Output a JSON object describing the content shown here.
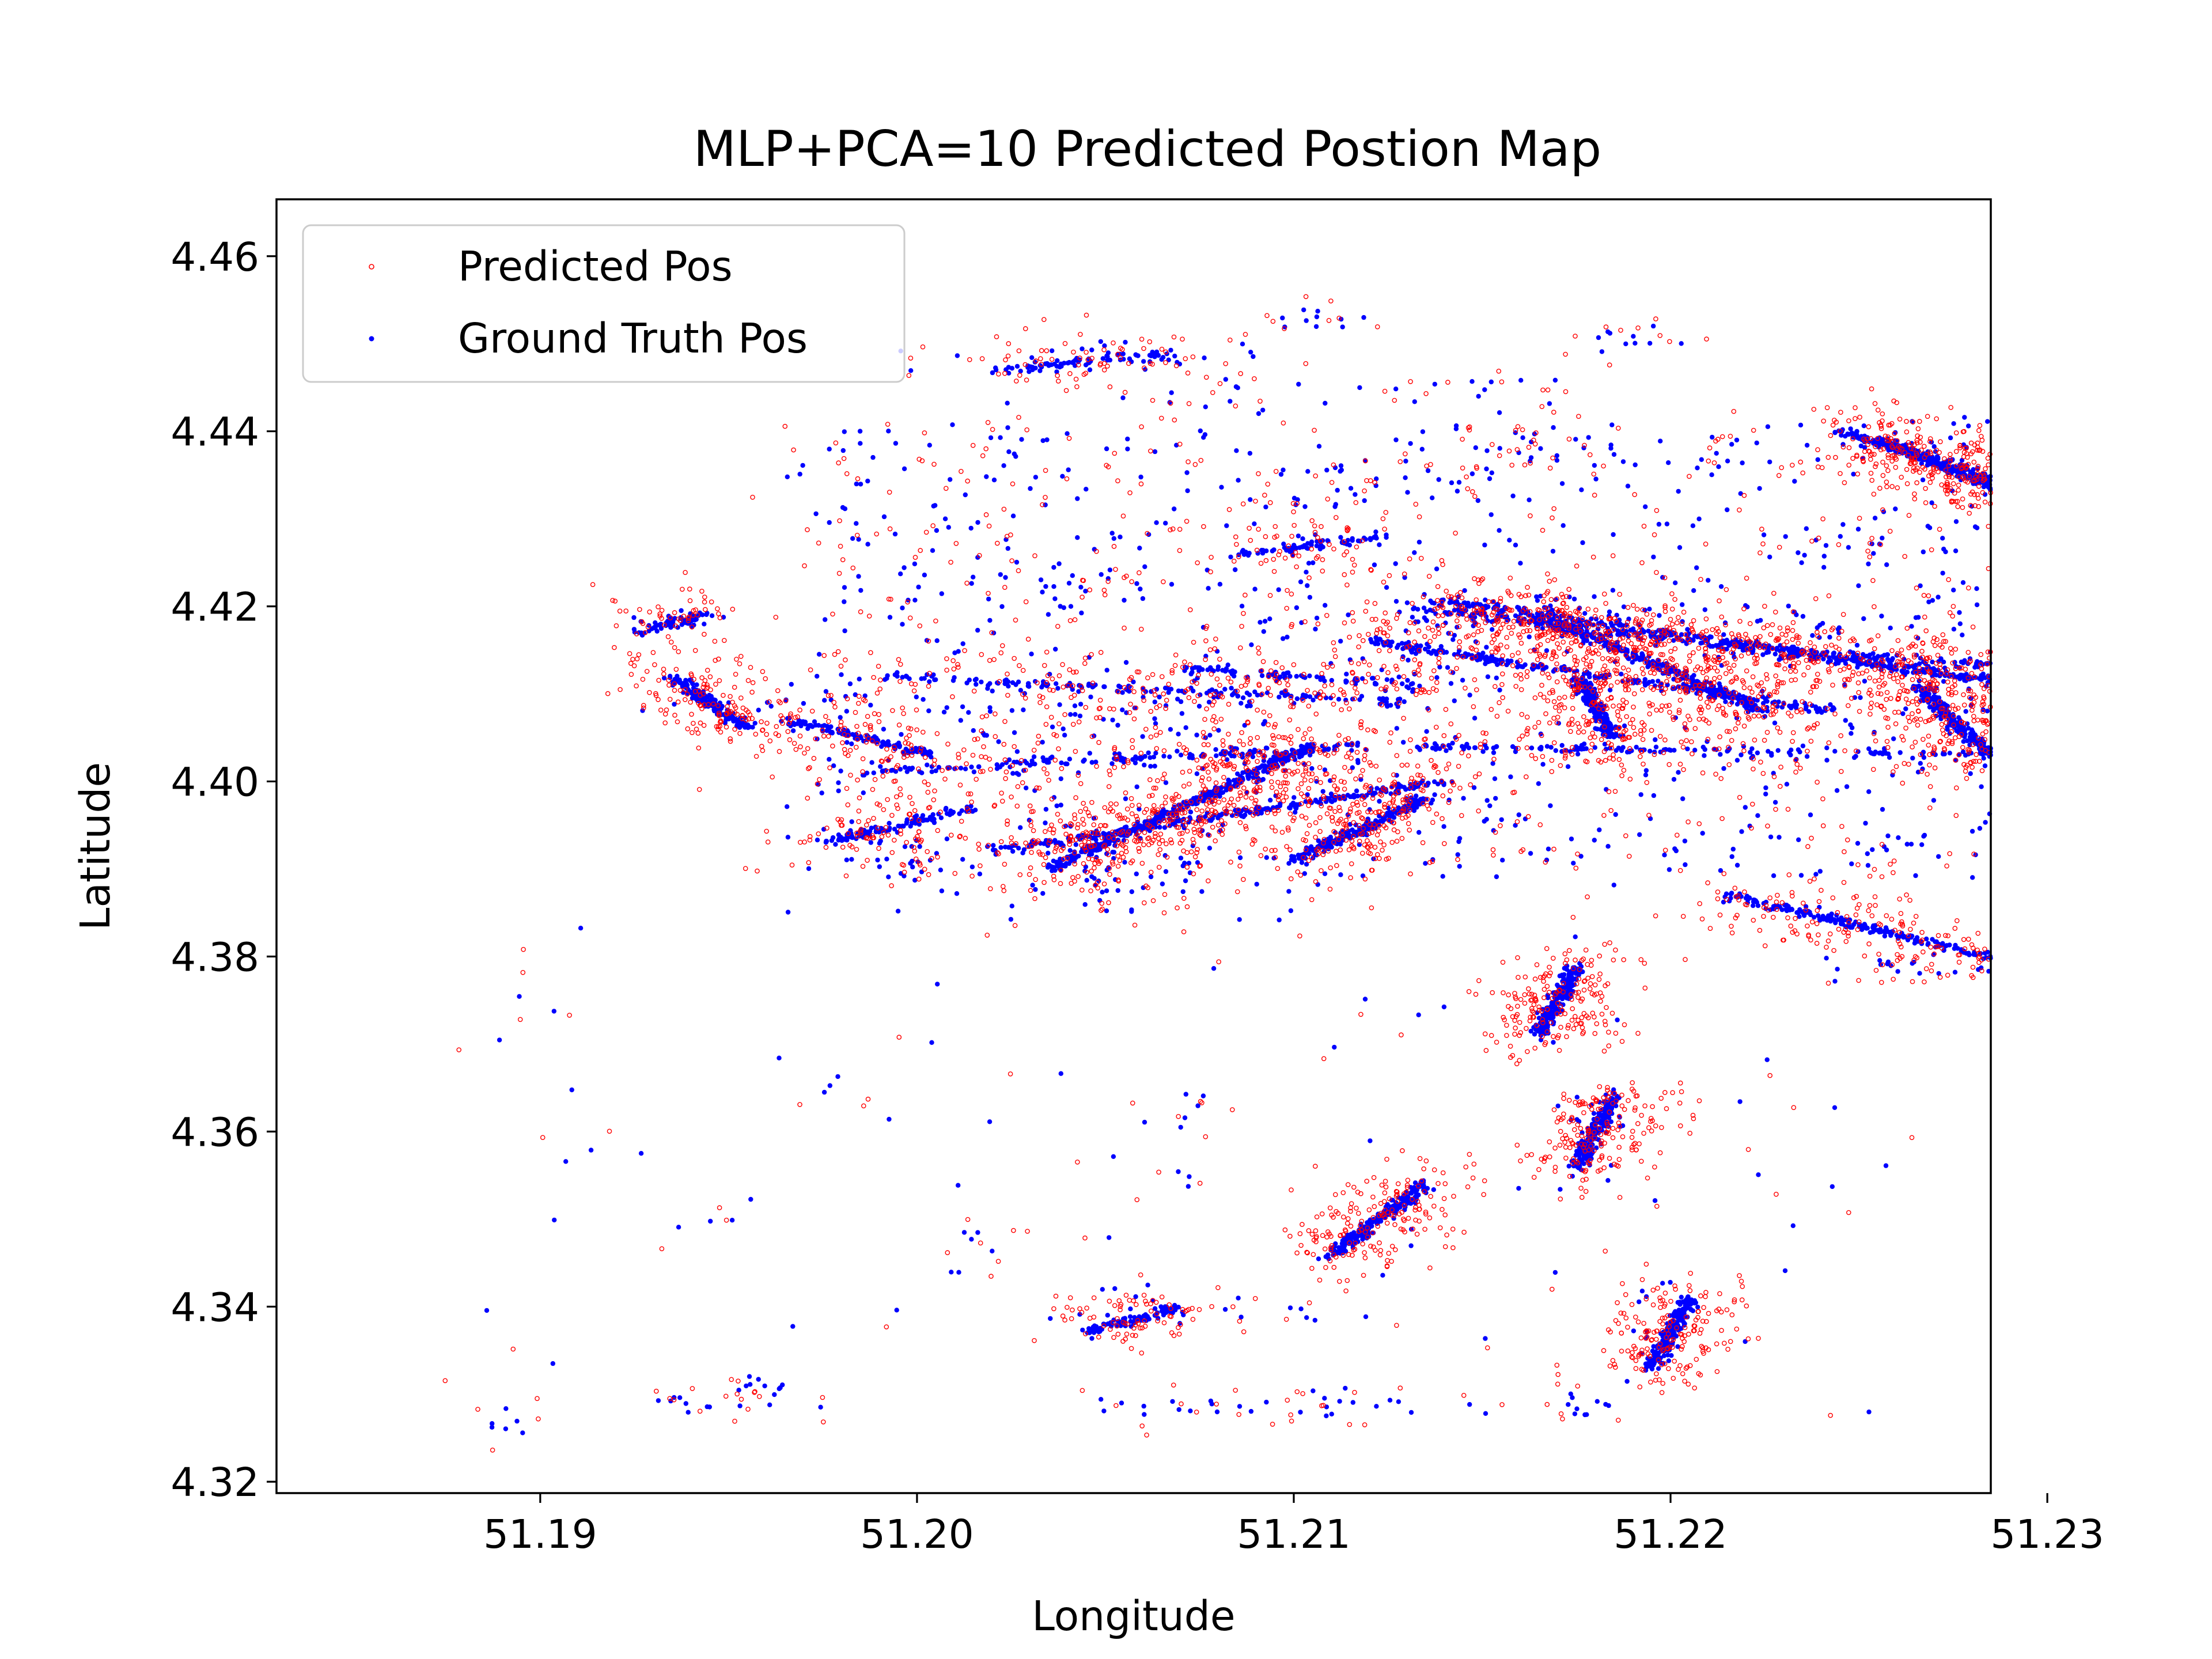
{
  "chart_data": {
    "type": "scatter",
    "title": "MLP+PCA=10 Predicted Postion Map",
    "xlabel": "Longitude",
    "ylabel": "Latitude",
    "xlim": [
      51.183,
      51.2285
    ],
    "ylim": [
      4.3187,
      4.4665
    ],
    "xticks": [
      51.19,
      51.2,
      51.21,
      51.22,
      51.23
    ],
    "xtick_labels": [
      "51.19",
      "51.20",
      "51.21",
      "51.22",
      "51.23"
    ],
    "yticks": [
      4.32,
      4.34,
      4.36,
      4.38,
      4.4,
      4.42,
      4.44,
      4.46
    ],
    "ytick_labels": [
      "4.32",
      "4.34",
      "4.36",
      "4.38",
      "4.40",
      "4.42",
      "4.44",
      "4.46"
    ],
    "grid": false,
    "legend_position": "upper-left",
    "series": [
      {
        "name": "Predicted Pos",
        "color": "#ff0000",
        "marker": "hollow-circle"
      },
      {
        "name": "Ground Truth Pos",
        "color": "#0000ff",
        "marker": "filled-dot"
      }
    ],
    "segments": [
      [
        51.202,
        4.392,
        51.214,
        4.4
      ],
      [
        51.2035,
        4.39,
        51.2105,
        4.404
      ],
      [
        51.199,
        4.412,
        51.213,
        4.409
      ],
      [
        51.198,
        4.401,
        51.212,
        4.404
      ],
      [
        51.213,
        4.42,
        51.2295,
        4.411
      ],
      [
        51.213,
        4.404,
        51.2295,
        4.403
      ],
      [
        51.212,
        4.416,
        51.2245,
        4.408
      ],
      [
        51.207,
        4.413,
        51.2135,
        4.411
      ],
      [
        51.2165,
        4.419,
        51.2225,
        4.408
      ],
      [
        51.2135,
        4.421,
        51.2295,
        4.411
      ],
      [
        51.223,
        4.415,
        51.2295,
        4.413
      ],
      [
        51.2255,
        4.439,
        51.2335,
        4.425
      ],
      [
        51.2245,
        4.44,
        51.2335,
        4.428
      ],
      [
        51.2265,
        4.411,
        51.2285,
        4.403
      ],
      [
        51.2175,
        4.412,
        51.2185,
        4.405
      ],
      [
        51.202,
        4.447,
        51.207,
        4.449
      ],
      [
        51.2085,
        4.426,
        51.2125,
        4.428
      ],
      [
        51.21,
        4.391,
        51.2135,
        4.398
      ],
      [
        51.1925,
        4.417,
        51.1945,
        4.419
      ],
      [
        51.2175,
        4.356,
        51.2185,
        4.364
      ],
      [
        51.2165,
        4.371,
        51.2175,
        4.379
      ],
      [
        51.2195,
        4.333,
        51.2205,
        4.341
      ],
      [
        51.2045,
        4.337,
        51.207,
        4.34
      ],
      [
        51.1935,
        4.412,
        51.1955,
        4.406
      ],
      [
        51.1975,
        4.393,
        51.2015,
        4.397
      ],
      [
        51.2215,
        4.387,
        51.2285,
        4.38
      ],
      [
        51.1965,
        4.407,
        51.2005,
        4.403
      ],
      [
        51.211,
        4.346,
        51.2135,
        4.354
      ]
    ],
    "clusters": [
      [
        51.2047,
        4.3895,
        0.0015,
        0.0025,
        45
      ],
      [
        51.2045,
        4.4477,
        0.0025,
        0.0012,
        30
      ],
      [
        51.2265,
        4.4385,
        0.0015,
        0.0015,
        30
      ],
      [
        51.2305,
        4.4275,
        0.0015,
        0.0012,
        25
      ],
      [
        51.2325,
        4.4245,
        0.0012,
        0.0012,
        25
      ],
      [
        51.2292,
        4.408,
        0.0012,
        0.003,
        45
      ],
      [
        51.2175,
        4.4195,
        0.0015,
        0.0012,
        30
      ],
      [
        51.2145,
        4.4185,
        0.0015,
        0.001,
        20
      ],
      [
        51.2095,
        4.399,
        0.002,
        0.002,
        30
      ],
      [
        51.2063,
        4.408,
        0.002,
        0.002,
        25
      ],
      [
        51.2015,
        4.405,
        0.002,
        0.002,
        25
      ],
      [
        51.1965,
        4.4085,
        0.002,
        0.0015,
        20
      ],
      [
        51.1937,
        4.4185,
        0.0006,
        0.0005,
        15
      ],
      [
        51.218,
        4.36,
        0.0005,
        0.003,
        18
      ],
      [
        51.2195,
        4.337,
        0.0005,
        0.003,
        15
      ],
      [
        51.2265,
        4.3785,
        0.0012,
        0.0008,
        15
      ],
      [
        51.2285,
        4.3785,
        0.0008,
        0.0006,
        12
      ],
      [
        51.206,
        4.3395,
        0.0015,
        0.0015,
        18
      ],
      [
        51.208,
        4.329,
        0.0015,
        0.001,
        12
      ],
      [
        51.2125,
        4.329,
        0.002,
        0.0008,
        15
      ],
      [
        51.196,
        4.331,
        0.0006,
        0.0008,
        10
      ],
      [
        51.2175,
        4.329,
        0.0006,
        0.001,
        10
      ],
      [
        51.2185,
        4.45,
        0.0006,
        0.001,
        10
      ],
      [
        51.2105,
        4.453,
        0.0008,
        0.0008,
        10
      ],
      [
        51.1945,
        4.329,
        0.001,
        0.0008,
        10
      ],
      [
        51.189,
        4.327,
        0.0003,
        0.001,
        6
      ],
      [
        51.2155,
        4.439,
        0.0006,
        0.003,
        12
      ],
      [
        51.2245,
        4.4275,
        0.001,
        0.001,
        10
      ],
      [
        51.2145,
        4.444,
        0.002,
        0.0012,
        12
      ],
      [
        51.204,
        4.423,
        0.0015,
        0.0012,
        12
      ],
      [
        51.2115,
        4.433,
        0.001,
        0.002,
        12
      ],
      [
        51.2215,
        4.396,
        0.004,
        0.0025,
        15
      ],
      [
        51.2115,
        4.39,
        0.003,
        0.002,
        15
      ],
      [
        51.225,
        4.418,
        0.003,
        0.003,
        20
      ],
      [
        51.208,
        4.443,
        0.002,
        0.0015,
        12
      ],
      [
        51.22,
        4.437,
        0.002,
        0.0015,
        12
      ],
      [
        51.2,
        4.39,
        0.001,
        0.0012,
        12
      ],
      [
        51.2135,
        4.412,
        0.0015,
        0.0015,
        15
      ],
      [
        51.207,
        4.358,
        0.0004,
        0.003,
        6
      ],
      [
        51.201,
        4.345,
        0.0004,
        0.003,
        6
      ]
    ]
  }
}
